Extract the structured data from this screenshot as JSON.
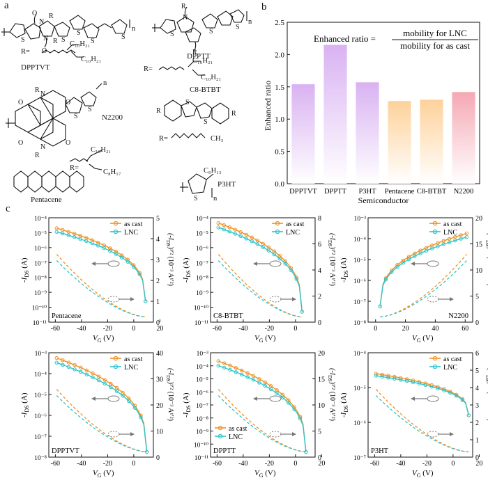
{
  "panels": {
    "a": "a",
    "b": "b",
    "c": "c"
  },
  "molecules": {
    "dpptvt": {
      "name": "DPPTVT",
      "r_label": "R=",
      "sub1": "C₁₀H₂₁",
      "sub2": "C₁₀H₂₁",
      "n": "n"
    },
    "dpptt": {
      "name": "DPPTT",
      "r_label": "R=",
      "sub1": "C₁₀H₂₁",
      "sub2": "C₁₀H₂₁",
      "n": "n"
    },
    "n2200": {
      "name": "N2200",
      "r_label": "R=",
      "sub1": "C₁₀H₂₁",
      "sub2": "C₈H₁₇",
      "n": "n"
    },
    "c8btbt": {
      "name": "C8-BTBT",
      "r_label": "R=",
      "sub": "CH₃"
    },
    "pentacene": {
      "name": "Pentacene"
    },
    "p3ht": {
      "name": "P3HT",
      "sub": "C₆H₁₃",
      "n": "n"
    },
    "atoms": {
      "S": "S",
      "N": "N",
      "O": "O",
      "R": "R"
    }
  },
  "chart_data": [
    {
      "type": "bar",
      "panel": "b",
      "categories": [
        "DPPTVT",
        "DPPTT",
        "P3HT",
        "Pentacene",
        "C8-BTBT",
        "N2200"
      ],
      "values": [
        1.54,
        2.15,
        1.57,
        1.28,
        1.3,
        1.42
      ],
      "colors": [
        "#d9b2f2",
        "#d9b2f2",
        "#d9b2f2",
        "#fdd29a",
        "#fdd29a",
        "#f5a8b4"
      ],
      "xlabel": "Semiconductor",
      "ylabel": "Enhanced ratio",
      "ylim": [
        0,
        2.5
      ],
      "yticks": [
        "0.0",
        "0.5",
        "1.0",
        "1.5",
        "2.0",
        "2.5"
      ],
      "equation": {
        "lhs": "Enhanced ratio =",
        "num": "mobility for LNC",
        "den": "mobility for as cast"
      }
    },
    {
      "type": "line",
      "panel": "c",
      "series_names": [
        "as cast",
        "LNC"
      ],
      "series_colors": [
        "#f0901e",
        "#2ec4cc"
      ],
      "xlabel": "V",
      "xlabel_sub": "G",
      "xunit": " (V)",
      "ylabel_left": "-I",
      "ylabel_left_sub": "DS",
      "ylabel_left_unit": " (A)",
      "ylabel_right": "(-I",
      "ylabel_right_sub": "DS",
      "ylabel_right_unit": ")¹′² (10⁻³ A¹′²)",
      "subplots": [
        {
          "name": "Pentacene",
          "xticks": [
            "-60",
            "-40",
            "-20",
            "0",
            "20"
          ],
          "yticks_left": [
            "10⁻¹¹",
            "10⁻¹⁰",
            "10⁻⁹",
            "10⁻⁸",
            "10⁻⁷",
            "10⁻⁶",
            "10⁻⁵",
            "10⁻⁴"
          ],
          "yticks_right": [
            "0",
            "1",
            "2",
            "3",
            "4",
            "5"
          ]
        },
        {
          "name": "C8-BTBT",
          "xticks": [
            "-60",
            "-40",
            "-20",
            "0"
          ],
          "yticks_left": [
            "10⁻¹¹",
            "10⁻¹⁰",
            "10⁻⁹",
            "10⁻⁸",
            "10⁻⁷",
            "10⁻⁶",
            "10⁻⁵",
            "10⁻⁴"
          ],
          "yticks_right": [
            "0",
            "2",
            "4",
            "6",
            "8"
          ]
        },
        {
          "name": "N2200",
          "xticks": [
            "0",
            "20",
            "40",
            "60"
          ],
          "yticks_left": [
            "10⁻⁸",
            "10⁻⁷",
            "10⁻⁶",
            "10⁻⁵",
            "10⁻⁴",
            "10⁻³"
          ],
          "yticks_right": [
            "0",
            "5",
            "10",
            "15",
            "20"
          ]
        },
        {
          "name": "DPPTVT",
          "xticks": [
            "-60",
            "-40",
            "-20",
            "0"
          ],
          "yticks_left": [
            "10⁻⁸",
            "10⁻⁷",
            "10⁻⁶",
            "10⁻⁵",
            "10⁻⁴",
            "10⁻³"
          ],
          "yticks_right": [
            "0",
            "10",
            "20",
            "30",
            "40"
          ]
        },
        {
          "name": "DPPTT",
          "xticks": [
            "-60",
            "-40",
            "-20",
            "0",
            "20"
          ],
          "yticks_left": [
            "10⁻¹¹",
            "10⁻¹⁰",
            "10⁻⁹",
            "10⁻⁸",
            "10⁻⁷",
            "10⁻⁶",
            "10⁻⁵",
            "10⁻⁴",
            "10⁻³"
          ],
          "yticks_right": [
            "0",
            "5",
            "10",
            "15",
            "20"
          ]
        },
        {
          "name": "P3HT",
          "xticks": [
            "-60",
            "-40",
            "-20",
            "0",
            "20"
          ],
          "yticks_left": [
            "10⁻⁷",
            "10⁻⁶",
            "10⁻⁵",
            "10⁻⁴"
          ],
          "yticks_right": [
            "0",
            "1",
            "2",
            "3",
            "4",
            "5",
            "6"
          ]
        }
      ]
    }
  ]
}
